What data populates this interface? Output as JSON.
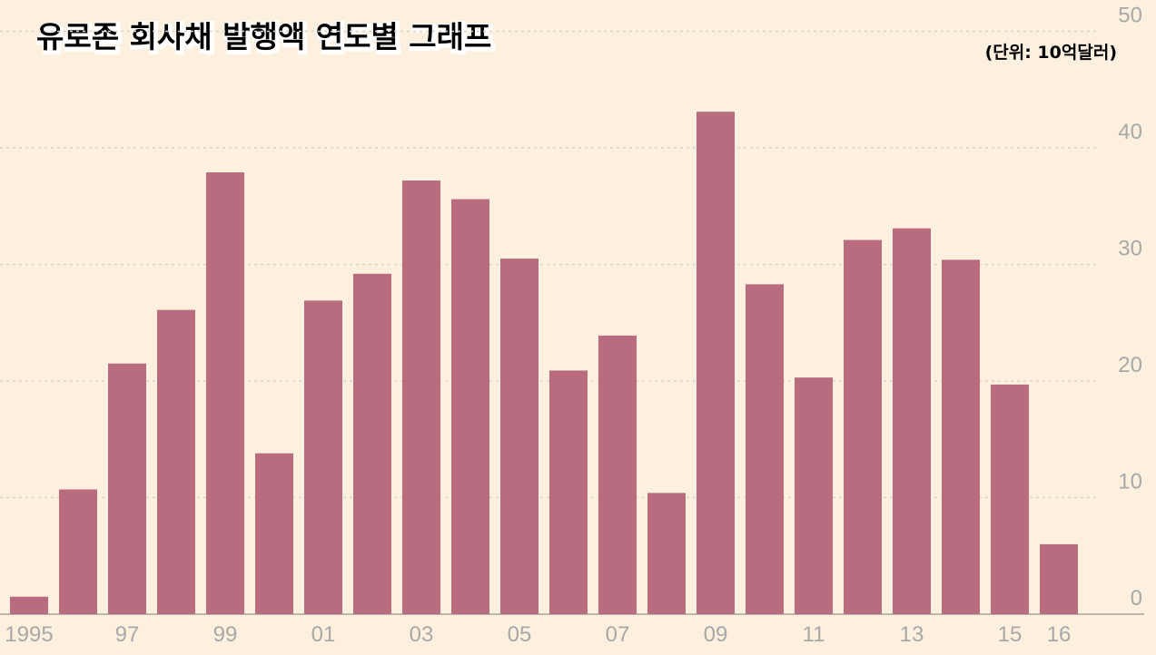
{
  "chart_data": {
    "type": "bar",
    "title": "유로존 회사채 발행액 연도별 그래프",
    "subtitle": "(단위: 10억달러)",
    "categories": [
      "1995",
      null,
      "97",
      null,
      "99",
      null,
      "01",
      null,
      "03",
      null,
      "05",
      null,
      "07",
      null,
      "09",
      null,
      "11",
      null,
      "13",
      null,
      "15",
      "16"
    ],
    "values": [
      1.5,
      10.7,
      21.5,
      26.1,
      37.9,
      13.8,
      26.9,
      29.2,
      37.2,
      35.6,
      30.5,
      20.9,
      23.9,
      10.4,
      43.1,
      28.3,
      20.3,
      32.1,
      33.1,
      30.4,
      19.7,
      6.0
    ],
    "color": "#b96c7f",
    "ylim": [
      0,
      50
    ],
    "yticks": [
      0,
      10,
      20,
      30,
      40,
      50
    ],
    "grid": true
  }
}
